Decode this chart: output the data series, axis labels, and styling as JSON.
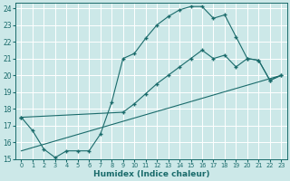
{
  "xlabel": "Humidex (Indice chaleur)",
  "xlim": [
    -0.5,
    23.5
  ],
  "ylim": [
    15,
    24.3
  ],
  "yticks": [
    15,
    16,
    17,
    18,
    19,
    20,
    21,
    22,
    23,
    24
  ],
  "xticks": [
    0,
    1,
    2,
    3,
    4,
    5,
    6,
    7,
    8,
    9,
    10,
    11,
    12,
    13,
    14,
    15,
    16,
    17,
    18,
    19,
    20,
    21,
    22,
    23
  ],
  "bg_color": "#cce8e8",
  "grid_color": "#ffffff",
  "line_color": "#1a6b6b",
  "curve1_x": [
    0,
    1,
    2,
    3,
    4,
    5,
    6,
    7,
    8,
    9,
    10,
    11,
    12,
    13,
    14,
    15,
    16,
    17,
    18,
    19,
    20,
    21,
    22,
    23
  ],
  "curve1_y": [
    17.5,
    16.7,
    15.6,
    15.1,
    15.5,
    15.5,
    15.5,
    16.5,
    18.4,
    21.0,
    21.3,
    22.2,
    23.0,
    23.5,
    23.9,
    24.1,
    24.1,
    23.4,
    23.6,
    22.3,
    21.0,
    20.9,
    19.7,
    20.0
  ],
  "curve2_x": [
    0,
    9,
    10,
    11,
    12,
    13,
    14,
    15,
    16,
    17,
    18,
    19,
    20,
    21,
    22,
    23
  ],
  "curve2_y": [
    17.5,
    17.8,
    18.3,
    18.9,
    19.5,
    20.0,
    20.5,
    21.0,
    21.5,
    21.0,
    21.2,
    20.5,
    21.0,
    20.9,
    19.7,
    20.0
  ],
  "curve3_x": [
    0,
    23
  ],
  "curve3_y": [
    15.5,
    20.0
  ]
}
